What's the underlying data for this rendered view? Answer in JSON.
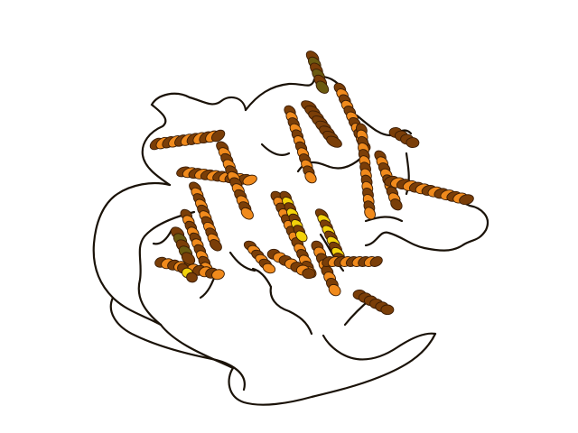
{
  "image": {
    "subject": "protein-cartoon",
    "background": "#ffffff",
    "colors": {
      "coil": "#1a1208",
      "helix_main": "#f08a1c",
      "helix_dark": "#7a3e08",
      "helix_edge": "#3a1c04",
      "helix_yellow": "#f2d20a",
      "helix_olive": "#6b5a10"
    }
  }
}
